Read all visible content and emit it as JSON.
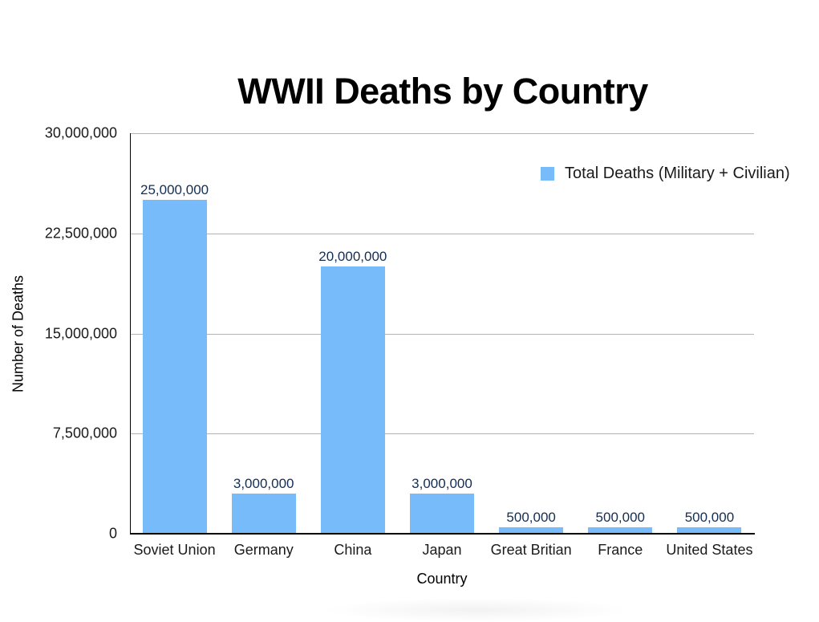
{
  "chart_data": {
    "type": "bar",
    "title": "WWII Deaths by Country",
    "xlabel": "Country",
    "ylabel": "Number of Deaths",
    "categories": [
      "Soviet Union",
      "Germany",
      "China",
      "Japan",
      "Great Britian",
      "France",
      "United States"
    ],
    "series": [
      {
        "name": "Total Deaths (Military + Civilian)",
        "color": "#77bbfb",
        "values": [
          25000000,
          3000000,
          20000000,
          3000000,
          500000,
          500000,
          500000
        ]
      }
    ],
    "data_labels": [
      "25,000,000",
      "3,000,000",
      "20,000,000",
      "3,000,000",
      "500,000",
      "500,000",
      "500,000"
    ],
    "ylim": [
      0,
      30000000
    ],
    "yticks": [
      0,
      7500000,
      15000000,
      22500000,
      30000000
    ],
    "ytick_labels": [
      "0",
      "7,500,000",
      "15,000,000",
      "22,500,000",
      "30,000,000"
    ],
    "grid": true,
    "legend_position": "top-right"
  },
  "legend": {
    "label": "Total Deaths (Military + Civilian)"
  }
}
